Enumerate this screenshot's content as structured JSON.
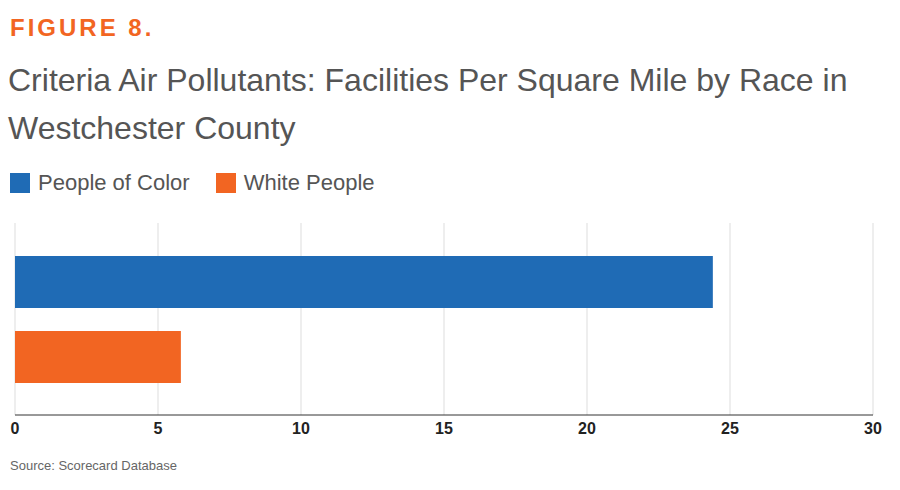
{
  "chart_data": {
    "type": "bar",
    "figure_label": "FIGURE 8.",
    "title": "Criteria Air Pollutants: Facilities Per Square Mile by Race in Westchester County",
    "source": "Source: Scorecard Database",
    "orientation": "horizontal",
    "categories": [
      null
    ],
    "series": [
      {
        "name": "People of Color",
        "color": "#1f6bb5",
        "values": [
          24.4
        ]
      },
      {
        "name": "White People",
        "color": "#f26522",
        "values": [
          5.8
        ]
      }
    ],
    "xlim": [
      0,
      30
    ],
    "xticks": [
      0,
      5,
      10,
      15,
      20,
      25,
      30
    ],
    "grid": true,
    "legend": "top-left",
    "tick_labels": "x"
  }
}
